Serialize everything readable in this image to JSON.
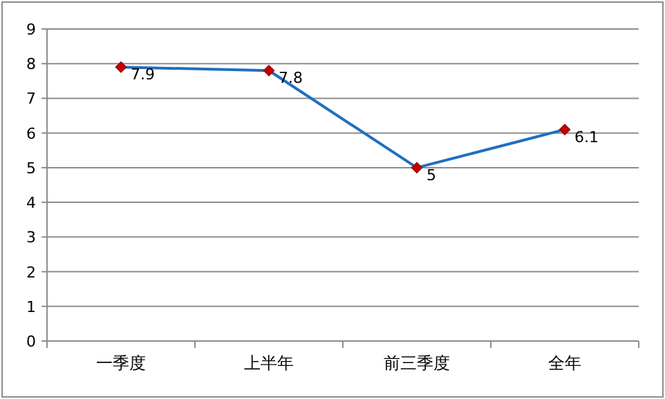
{
  "chart_data": {
    "type": "line",
    "categories": [
      "一季度",
      "上半年",
      "前三季度",
      "全年"
    ],
    "series": [
      {
        "color": "#1f6fbf",
        "colors": [
          "#c00000",
          "#c00000",
          "#c00000",
          "#c00000"
        ],
        "values": [
          7.9,
          7.8,
          5,
          6.1
        ]
      }
    ],
    "ylim": [
      0,
      9
    ],
    "yticks": [
      0,
      1,
      2,
      3,
      4,
      5,
      6,
      7,
      8,
      9
    ],
    "grid": "y",
    "marker": "diamond",
    "line_style": "solid",
    "data_labels": true
  }
}
